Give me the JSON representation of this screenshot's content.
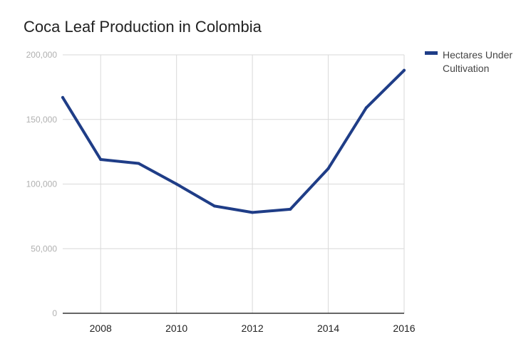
{
  "chart_data": {
    "type": "line",
    "title": "Coca Leaf Production in Colombia",
    "xlabel": "",
    "ylabel": "",
    "x": [
      2007,
      2008,
      2009,
      2010,
      2011,
      2012,
      2013,
      2014,
      2015,
      2016
    ],
    "series": [
      {
        "name": "Hectares Under Cultivation",
        "values": [
          167000,
          119000,
          116000,
          100000,
          83000,
          78000,
          80500,
          112000,
          159000,
          188000
        ],
        "color": "#1f3d87"
      }
    ],
    "xlim": [
      2007,
      2016
    ],
    "ylim": [
      0,
      200000
    ],
    "xticks": [
      2008,
      2010,
      2012,
      2014,
      2016
    ],
    "xtick_labels": [
      "2008",
      "2010",
      "2012",
      "2014",
      "2016"
    ],
    "yticks": [
      0,
      50000,
      100000,
      150000,
      200000
    ],
    "ytick_labels": [
      "0",
      "50,000",
      "100,000",
      "150,000",
      "200,000"
    ],
    "grid": true,
    "legend_position": "top-right"
  }
}
